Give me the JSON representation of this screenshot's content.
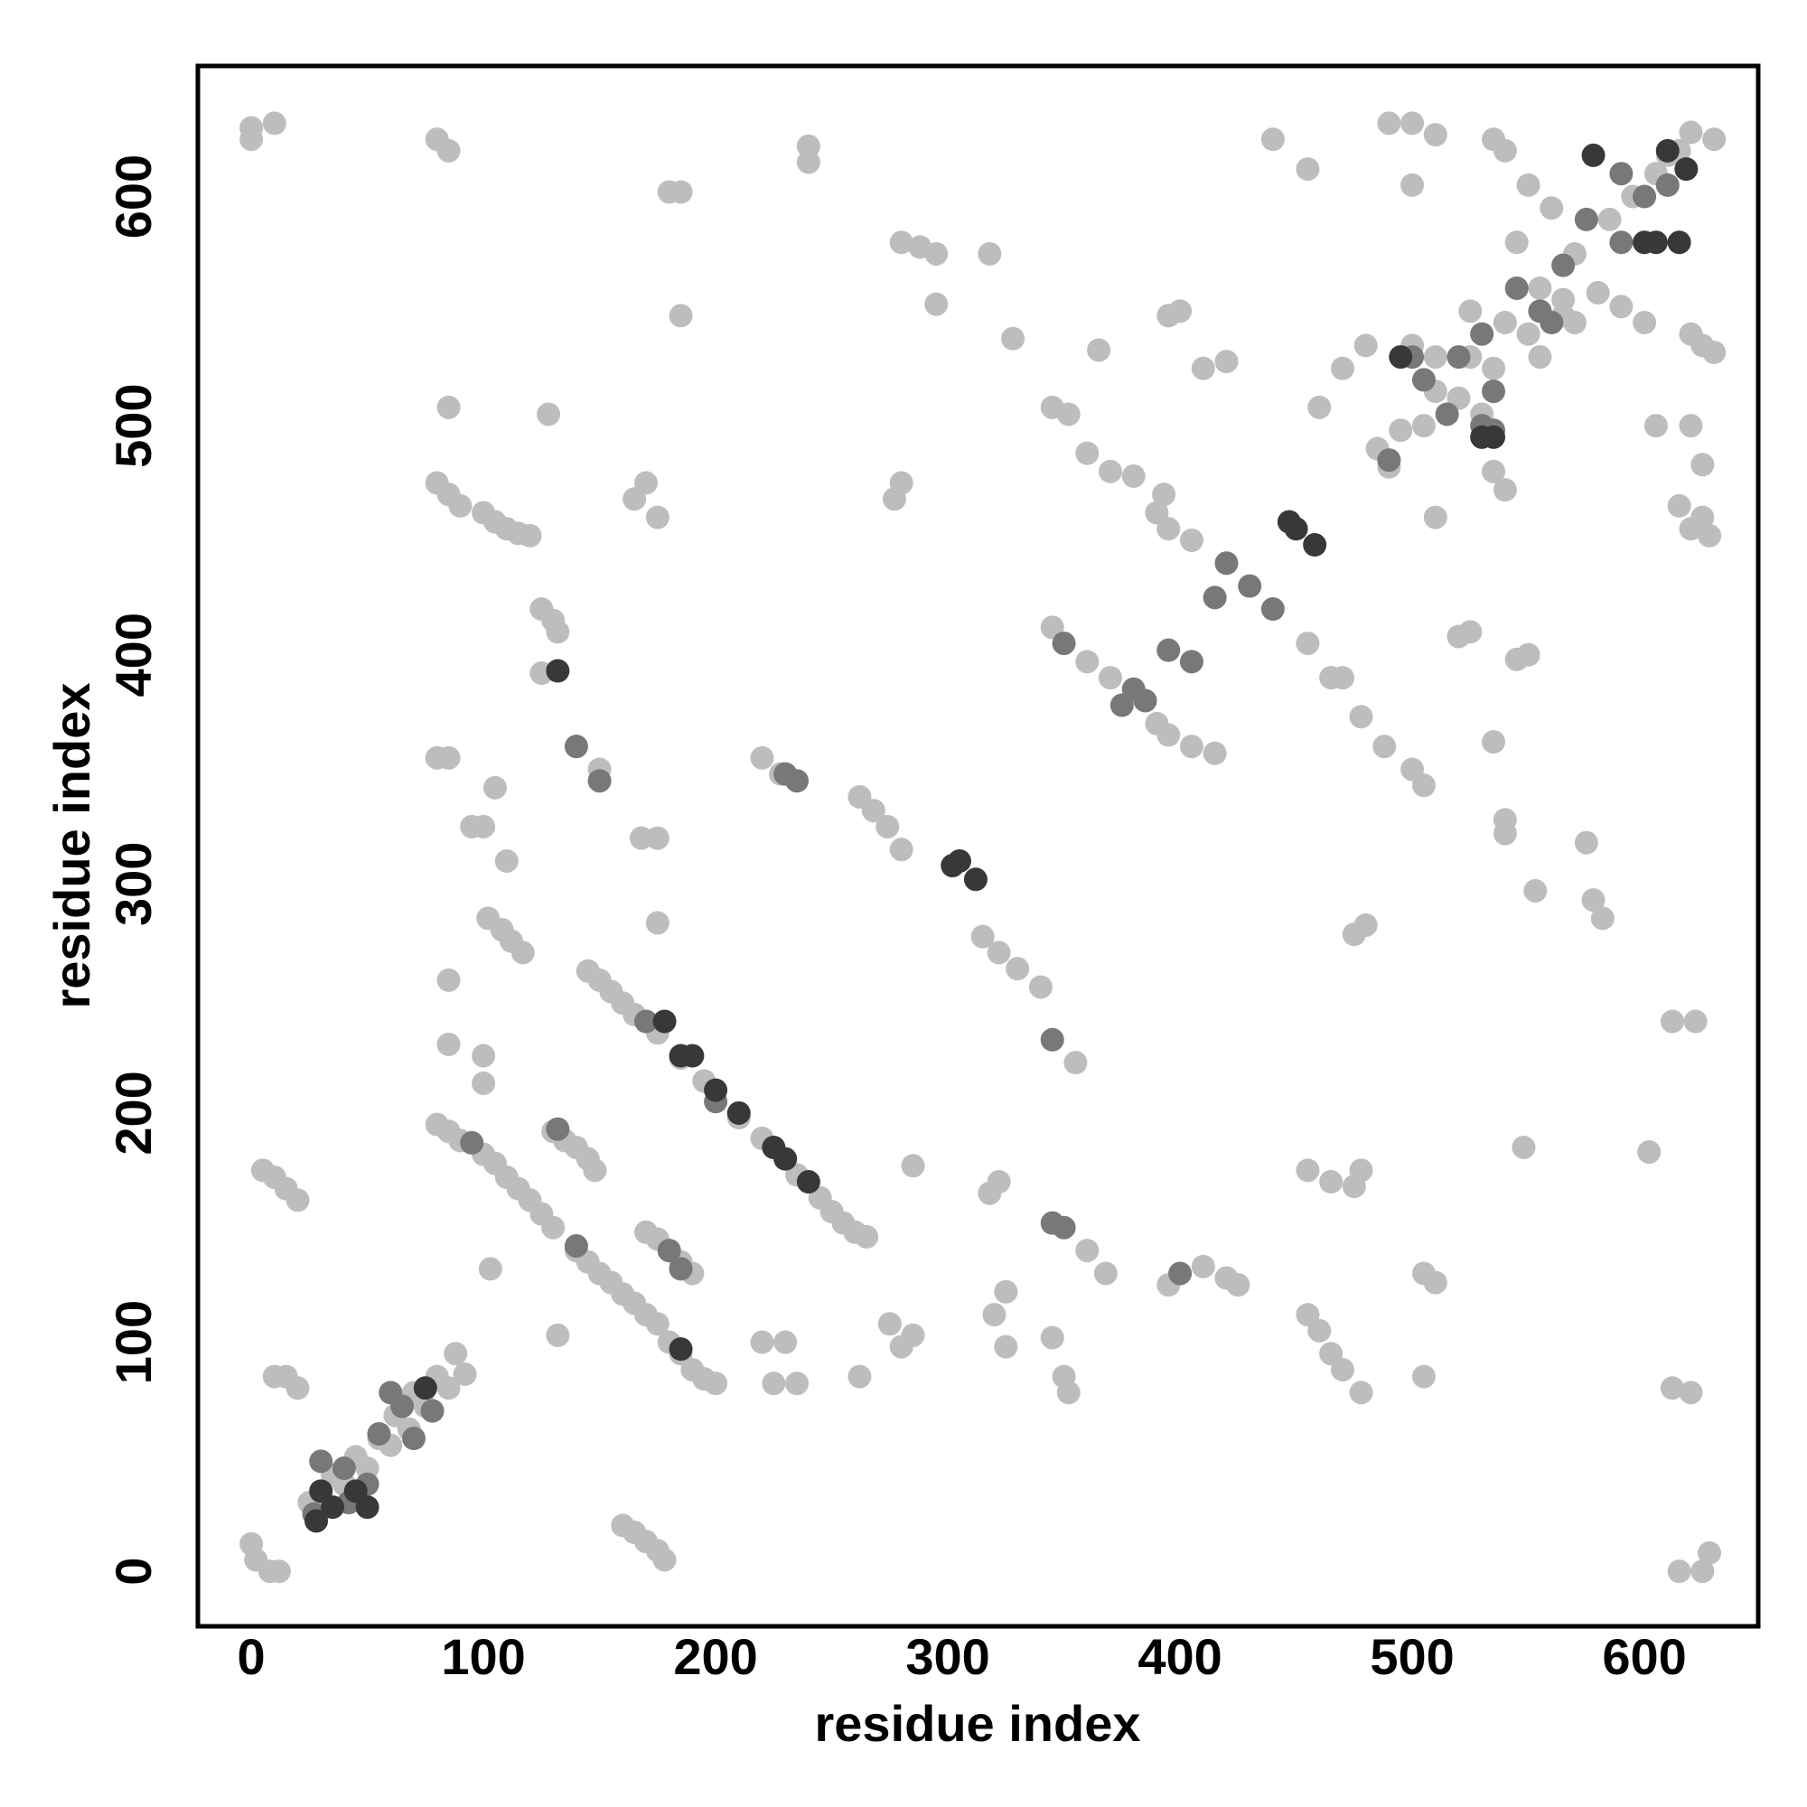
{
  "chart_data": {
    "type": "scatter",
    "xlabel": "residue index",
    "ylabel": "residue index",
    "xlim": [
      -23,
      649
    ],
    "ylim": [
      -24,
      657
    ],
    "xticks": [
      0,
      100,
      200,
      300,
      400,
      500,
      600
    ],
    "yticks": [
      0,
      100,
      200,
      300,
      400,
      500,
      600
    ],
    "series": [
      {
        "color": "#bdbdbd",
        "x": [
          30,
          35,
          40,
          45,
          50,
          55,
          60,
          62,
          68,
          70,
          75,
          80,
          85,
          88,
          92,
          25,
          0,
          2,
          8,
          12,
          5,
          10,
          15,
          20,
          10,
          15,
          20,
          160,
          165,
          170,
          175,
          178,
          145,
          150,
          155,
          160,
          165,
          175,
          185,
          195,
          210,
          220,
          235,
          245,
          250,
          255,
          260,
          265,
          80,
          85,
          90,
          100,
          105,
          110,
          115,
          120,
          125,
          130,
          140,
          145,
          150,
          155,
          160,
          165,
          170,
          175,
          180,
          185,
          190,
          195,
          200,
          130,
          135,
          140,
          145,
          148,
          170,
          175,
          180,
          185,
          190,
          80,
          85,
          90,
          100,
          105,
          110,
          115,
          120,
          125,
          130,
          132,
          125,
          80,
          85,
          95,
          100,
          102,
          108,
          112,
          117,
          85,
          85,
          100,
          100,
          80,
          85,
          0,
          10,
          0,
          85,
          128,
          170,
          165,
          175,
          240,
          240,
          180,
          185,
          185,
          280,
          288,
          295,
          295,
          318,
          328,
          280,
          277,
          168,
          175,
          150,
          103,
          132,
          175,
          105,
          110,
          262,
          268,
          274,
          280,
          315,
          322,
          330,
          340,
          355,
          360,
          320,
          325,
          325,
          345,
          350,
          352,
          280,
          285,
          275,
          262,
          285,
          318,
          322,
          220,
          230,
          235,
          225,
          220,
          228,
          345,
          352,
          360,
          370,
          380,
          393,
          390,
          395,
          405,
          455,
          465,
          470,
          478,
          488,
          500,
          505,
          345,
          360,
          370,
          390,
          395,
          405,
          415,
          400,
          395,
          365,
          410,
          420,
          440,
          455,
          490,
          500,
          500,
          510,
          480,
          470,
          395,
          410,
          420,
          425,
          368,
          455,
          465,
          475,
          478,
          455,
          460,
          465,
          470,
          478,
          475,
          480,
          505,
          510,
          505,
          510,
          520,
          525,
          535,
          545,
          550,
          548,
          540,
          540,
          553,
          575,
          578,
          582,
          565,
          570,
          580,
          590,
          600,
          605,
          620,
          625,
          625,
          615,
          620,
          628,
          612,
          622,
          602,
          612,
          620,
          615,
          625,
          628,
          460,
          535,
          540,
          550,
          560,
          545,
          610,
          630,
          630,
          620,
          625,
          485,
          490,
          495,
          505,
          510,
          520,
          525,
          535,
          540,
          550,
          555,
          565,
          570,
          585,
          595,
          605,
          615,
          620,
          500,
          530,
          535,
          540,
          510,
          525,
          555
        ],
        "values": [
          30,
          42,
          38,
          50,
          45,
          58,
          55,
          68,
          62,
          78,
          72,
          85,
          80,
          95,
          86,
          30,
          12,
          5,
          0,
          0,
          175,
          172,
          167,
          162,
          85,
          85,
          80,
          20,
          17,
          13,
          9,
          5,
          262,
          258,
          253,
          248,
          243,
          235,
          224,
          214,
          198,
          189,
          173,
          163,
          157,
          152,
          148,
          146,
          195,
          192,
          188,
          182,
          178,
          172,
          167,
          162,
          156,
          150,
          140,
          135,
          130,
          126,
          121,
          117,
          112,
          108,
          100,
          95,
          88,
          84,
          82,
          192,
          188,
          185,
          180,
          175,
          148,
          145,
          140,
          135,
          130,
          475,
          470,
          465,
          462,
          458,
          455,
          453,
          452,
          420,
          415,
          410,
          392,
          355,
          355,
          325,
          325,
          285,
          280,
          275,
          270,
          258,
          230,
          225,
          213,
          625,
          620,
          630,
          632,
          625,
          508,
          505,
          475,
          468,
          460,
          622,
          615,
          602,
          602,
          548,
          580,
          578,
          575,
          553,
          575,
          538,
          475,
          468,
          320,
          320,
          350,
          132,
          103,
          283,
          342,
          310,
          338,
          332,
          325,
          315,
          277,
          270,
          263,
          255,
          222,
          140,
          112,
          122,
          98,
          102,
          85,
          78,
          98,
          103,
          108,
          85,
          177,
          165,
          170,
          100,
          100,
          82,
          82,
          355,
          348,
          508,
          505,
          488,
          480,
          478,
          470,
          462,
          455,
          450,
          405,
          390,
          390,
          373,
          360,
          350,
          343,
          412,
          397,
          390,
          370,
          365,
          360,
          357,
          550,
          548,
          533,
          525,
          528,
          625,
          612,
          632,
          632,
          605,
          627,
          535,
          525,
          125,
          133,
          128,
          125,
          130,
          175,
          170,
          168,
          175,
          112,
          105,
          95,
          88,
          78,
          278,
          282,
          130,
          126,
          85,
          460,
          408,
          410,
          362,
          398,
          400,
          185,
          328,
          322,
          297,
          318,
          293,
          285,
          548,
          545,
          558,
          552,
          545,
          500,
          500,
          483,
          460,
          465,
          455,
          452,
          240,
          240,
          183,
          80,
          78,
          0,
          0,
          8,
          508,
          625,
          620,
          605,
          595,
          580,
          618,
          625,
          532,
          540,
          535,
          490,
          482,
          498,
          500,
          515,
          512,
          530,
          525,
          545,
          540,
          560,
          555,
          575,
          590,
          600,
          610,
          620,
          628,
          535,
          505,
          480,
          472,
          530,
          550,
          530
        ]
      },
      {
        "color": "#787878",
        "x": [
          30,
          40,
          50,
          55,
          65,
          70,
          78,
          42,
          60,
          27,
          132,
          140,
          150,
          140,
          95,
          230,
          235,
          350,
          375,
          380,
          385,
          395,
          405,
          400,
          420,
          430,
          440,
          345,
          345,
          350,
          180,
          185,
          490,
          505,
          515,
          520,
          530,
          545,
          555,
          560,
          575,
          590,
          600,
          610,
          500,
          535,
          535,
          590,
          170,
          200,
          415,
          530,
          565
        ],
        "values": [
          48,
          45,
          38,
          60,
          72,
          58,
          70,
          30,
          78,
          25,
          193,
          142,
          345,
          360,
          187,
          348,
          345,
          405,
          378,
          385,
          380,
          402,
          397,
          130,
          440,
          430,
          420,
          232,
          152,
          150,
          140,
          132,
          485,
          520,
          505,
          530,
          500,
          560,
          550,
          545,
          590,
          580,
          600,
          605,
          530,
          515,
          498,
          610,
          240,
          205,
          425,
          540,
          570
        ]
      },
      {
        "color": "#383838",
        "x": [
          28,
          35,
          30,
          45,
          75,
          50,
          132,
          302,
          305,
          312,
          447,
          450,
          458,
          178,
          190,
          200,
          210,
          230,
          240,
          185,
          578,
          600,
          605,
          618,
          610,
          495,
          530,
          535,
          615,
          185,
          225
        ],
        "values": [
          22,
          28,
          35,
          35,
          80,
          28,
          393,
          308,
          310,
          302,
          458,
          455,
          448,
          240,
          225,
          210,
          200,
          180,
          170,
          97,
          618,
          580,
          580,
          612,
          620,
          530,
          495,
          495,
          580,
          225,
          185
        ]
      }
    ]
  }
}
